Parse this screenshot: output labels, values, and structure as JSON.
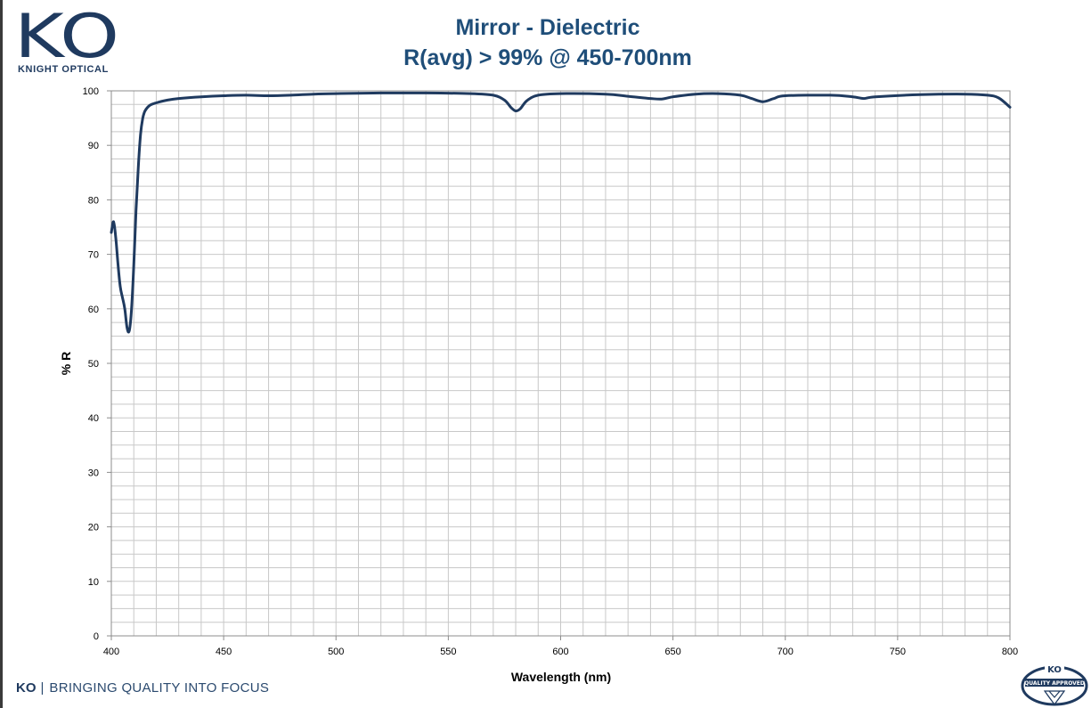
{
  "brand": {
    "logo_text": "KO",
    "logo_subtext": "KNIGHT OPTICAL",
    "tagline_logo": "KO",
    "tagline": "BRINGING QUALITY INTO FOCUS",
    "badge_top": "KO",
    "badge_text": "QUALITY APPROVED",
    "color": "#1f3a5f"
  },
  "chart_data": {
    "type": "line",
    "title": "Mirror - Dielectric",
    "subtitle": "R(avg) > 99% @ 450-700nm",
    "xlabel": "Wavelength (nm)",
    "ylabel": "% R",
    "xlim": [
      400,
      800
    ],
    "ylim": [
      0,
      100
    ],
    "x_ticks": [
      400,
      450,
      500,
      550,
      600,
      650,
      700,
      750,
      800
    ],
    "y_ticks": [
      0,
      10,
      20,
      30,
      40,
      50,
      60,
      70,
      80,
      90,
      100
    ],
    "x_minor_step": 10,
    "y_minor_step": 2.5,
    "grid": true,
    "line_color": "#1f3a5f",
    "series": [
      {
        "x": [
          400,
          401,
          402,
          403,
          404,
          405,
          406,
          407,
          408,
          409,
          410,
          411,
          412,
          413,
          414,
          415,
          417,
          420,
          425,
          430,
          440,
          450,
          460,
          470,
          480,
          490,
          500,
          520,
          540,
          560,
          570,
          575,
          578,
          580,
          582,
          585,
          590,
          600,
          620,
          630,
          640,
          645,
          650,
          660,
          670,
          680,
          685,
          690,
          695,
          700,
          720,
          730,
          735,
          740,
          760,
          780,
          790,
          795,
          800
        ],
        "y": [
          74,
          76,
          73,
          68,
          64,
          62,
          60,
          56.5,
          56,
          60,
          68,
          78,
          86,
          92,
          95,
          96.3,
          97.3,
          97.8,
          98.3,
          98.6,
          98.9,
          99.1,
          99.2,
          99.1,
          99.2,
          99.4,
          99.5,
          99.6,
          99.6,
          99.5,
          99.2,
          98.3,
          96.9,
          96.3,
          96.7,
          98.2,
          99.2,
          99.5,
          99.4,
          99.0,
          98.6,
          98.5,
          98.9,
          99.4,
          99.5,
          99.2,
          98.6,
          98.0,
          98.6,
          99.1,
          99.2,
          98.9,
          98.6,
          98.9,
          99.3,
          99.4,
          99.2,
          98.7,
          97
        ]
      }
    ]
  }
}
